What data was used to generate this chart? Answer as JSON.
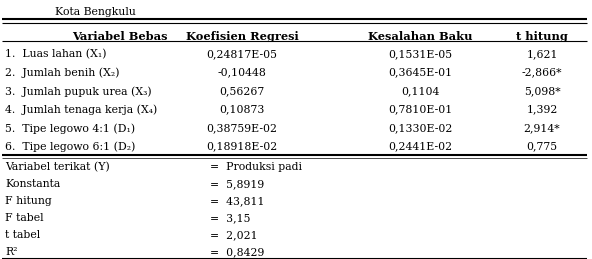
{
  "title": "Kota Bengkulu",
  "headers": [
    "Variabel Bebas",
    "Koefisien Regresi",
    "Kesalahan Baku",
    "t hitung"
  ],
  "rows": [
    [
      "1.  Luas lahan (X₁)",
      "0,24817E-05",
      "0,1531E-05",
      "1,621"
    ],
    [
      "2.  Jumlah benih (X₂)",
      "-0,10448",
      "0,3645E-01",
      "-2,866*"
    ],
    [
      "3.  Jumlah pupuk urea (X₃)",
      "0,56267",
      "0,1104",
      "5,098*"
    ],
    [
      "4.  Jumlah tenaga kerja (X₄)",
      "0,10873",
      "0,7810E-01",
      "1,392"
    ],
    [
      "5.  Tipe legowo 4:1 (D₁)",
      "0,38759E-02",
      "0,1330E-02",
      "2,914*"
    ],
    [
      "6.  Tipe legowo 6:1 (D₂)",
      "0,18918E-02",
      "0,2441E-02",
      "0,775"
    ]
  ],
  "footer_rows": [
    [
      "Variabel terikat (Y)",
      "=  Produksi padi"
    ],
    [
      "Konstanta",
      "=  5,8919"
    ],
    [
      "F hitung",
      "=  43,811"
    ],
    [
      "F tabel",
      "=  3,15"
    ],
    [
      "t tabel",
      "=  2,021"
    ],
    [
      "R²",
      "=  0,8429"
    ]
  ],
  "background": "#ffffff",
  "font_size": 7.8,
  "header_font_size": 8.2
}
